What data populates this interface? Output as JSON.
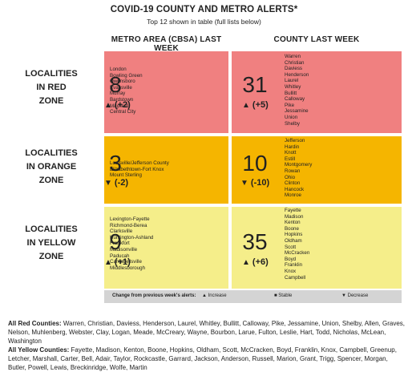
{
  "title": "COVID-19 COUNTY AND METRO ALERTS*",
  "subtitle": "Top 12 shown in table (full lists below)",
  "headers": {
    "metro": "METRO AREA (CBSA) LAST WEEK",
    "county": "COUNTY LAST WEEK"
  },
  "rows": {
    "red": {
      "label": [
        "LOCALITIES",
        "IN RED",
        "ZONE"
      ],
      "metro": {
        "count": "8",
        "arrow": "▲",
        "change": "(+2)",
        "list": [
          "London",
          "Bowling Green",
          "Owensboro",
          "Evansville",
          "Murray",
          "Bardstown",
          "Mayfield",
          "Central City"
        ]
      },
      "county": {
        "count": "31",
        "arrow": "▲",
        "change": "(+5)",
        "list": [
          "Warren",
          "Christian",
          "Daviess",
          "Henderson",
          "Laurel",
          "Whitley",
          "Bullitt",
          "Calloway",
          "Pike",
          "Jessamine",
          "Union",
          "Shelby"
        ]
      },
      "color": "#f08080"
    },
    "orange": {
      "label": [
        "LOCALITIES",
        "IN ORANGE",
        "ZONE"
      ],
      "metro": {
        "count": "3",
        "arrow": "▼",
        "change": "(-2)",
        "list": [
          "Louisville/Jefferson County",
          "Elizabethtown-Fort Knox",
          "Mount Sterling"
        ]
      },
      "county": {
        "count": "10",
        "arrow": "▼",
        "change": "(-10)",
        "list": [
          "Jefferson",
          "Hardin",
          "Knott",
          "Estill",
          "Montgomery",
          "Rowan",
          "Ohio",
          "Clinton",
          "Hancock",
          "Monroe"
        ]
      },
      "color": "#f5b500"
    },
    "yellow": {
      "label": [
        "LOCALITIES",
        "IN YELLOW",
        "ZONE"
      ],
      "metro": {
        "count": "9",
        "arrow": "▲",
        "change": "(+1)",
        "list": [
          "Lexington-Fayette",
          "Richmond-Berea",
          "Clarksville",
          "Huntington-Ashland",
          "Frankfort",
          "Madisonville",
          "Paducah",
          "Campbellsville",
          "Middlesborough"
        ]
      },
      "county": {
        "count": "35",
        "arrow": "▲",
        "change": "(+6)",
        "list": [
          "Fayette",
          "Madison",
          "Kenton",
          "Boone",
          "Hopkins",
          "Oldham",
          "Scott",
          "McCracken",
          "Boyd",
          "Franklin",
          "Knox",
          "Campbell"
        ]
      },
      "color": "#f5ee8a"
    }
  },
  "legend": {
    "caption": "Change from previous week's alerts:",
    "increase": "▲ Increase",
    "stable": "■ Stable",
    "decrease": "▼ Decrease"
  },
  "footer": {
    "red_label": "All Red Counties:",
    "red_text": " Warren, Christian, Daviess, Henderson, Laurel, Whitley, Bullitt, Calloway, Pike, Jessamine, Union, Shelby, Allen, Graves, Nelson, Muhlenberg, Webster, Clay, Logan, Meade, McCreary, Wayne, Bourbon, Larue, Fulton, Leslie, Hart, Todd, Nicholas, McLean, Washington",
    "yellow_label": "All Yellow Counties:",
    "yellow_text": " Fayette, Madison, Kenton, Boone, Hopkins, Oldham, Scott, McCracken, Boyd, Franklin, Knox, Campbell, Greenup, Letcher, Marshall, Carter, Bell, Adair, Taylor, Rockcastle, Garrard, Jackson, Anderson, Russell, Marion, Grant, Trigg, Spencer, Morgan, Butler, Powell, Lewis, Breckinridge, Wolfe, Martin"
  }
}
